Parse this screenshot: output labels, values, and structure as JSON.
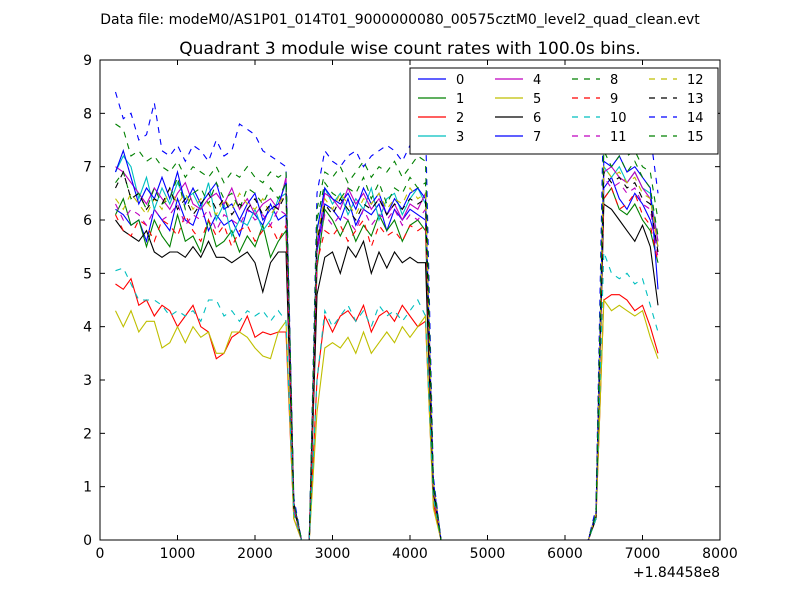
{
  "figure": {
    "suptitle": "Data file: modeM0/AS1P01_014T01_9000000080_00575cztM0_level2_quad_clean.evt"
  },
  "chart_data": {
    "type": "line",
    "title": "Quadrant 3 module wise count rates with 100.0s bins.",
    "xlabel": "",
    "ylabel": "",
    "x_offset_label": "+1.84458e8",
    "xlim": [
      0,
      8000
    ],
    "ylim": [
      0,
      9
    ],
    "xticks": [
      0,
      1000,
      2000,
      3000,
      4000,
      5000,
      6000,
      7000,
      8000
    ],
    "yticks": [
      0,
      1,
      2,
      3,
      4,
      5,
      6,
      7,
      8,
      9
    ],
    "legend_position": "top-right",
    "x": [
      200,
      300,
      400,
      500,
      600,
      700,
      800,
      900,
      1000,
      1100,
      1200,
      1300,
      1400,
      1500,
      1600,
      1700,
      1800,
      1900,
      2000,
      2100,
      2200,
      2300,
      2400,
      2500,
      2600,
      2700,
      2800,
      2900,
      3000,
      3100,
      3200,
      3300,
      3400,
      3500,
      3600,
      3700,
      3800,
      3900,
      4000,
      4100,
      4200,
      4300,
      4400,
      4500,
      6300,
      6400,
      6500,
      6600,
      6700,
      6800,
      6900,
      7000,
      7100,
      7200
    ],
    "series": [
      {
        "name": "0",
        "color": "#0000ff",
        "dash": "solid",
        "values": [
          6.2,
          6.1,
          5.9,
          6.0,
          5.6,
          6.2,
          6.0,
          5.8,
          6.4,
          6.0,
          5.9,
          6.3,
          5.8,
          6.1,
          5.9,
          6.0,
          5.7,
          6.2,
          6.1,
          5.9,
          6.3,
          6.0,
          6.1,
          0.65,
          0.0,
          0.0,
          5.4,
          6.3,
          6.2,
          6.0,
          6.4,
          5.9,
          6.2,
          6.1,
          6.3,
          5.8,
          6.2,
          6.0,
          6.2,
          6.1,
          6.0,
          1.0,
          0.0,
          0.0,
          0.0,
          0.5,
          6.6,
          6.8,
          6.4,
          6.2,
          6.5,
          6.3,
          6.0,
          5.5
        ]
      },
      {
        "name": "1",
        "color": "#008000",
        "dash": "solid",
        "values": [
          6.1,
          6.4,
          5.9,
          6.0,
          5.5,
          6.0,
          5.7,
          5.5,
          6.1,
          5.6,
          5.7,
          5.4,
          6.0,
          5.5,
          5.6,
          5.8,
          5.4,
          5.7,
          5.5,
          5.9,
          5.3,
          5.6,
          5.8,
          0.6,
          0.0,
          0.0,
          5.1,
          6.2,
          6.0,
          5.7,
          6.0,
          5.6,
          5.9,
          5.7,
          6.1,
          5.8,
          6.0,
          5.6,
          5.9,
          6.0,
          5.8,
          1.0,
          0.0,
          0.0,
          0.0,
          0.5,
          6.4,
          6.6,
          6.2,
          6.1,
          6.3,
          6.0,
          5.8,
          5.2
        ]
      },
      {
        "name": "2",
        "color": "#ff0000",
        "dash": "solid",
        "values": [
          4.8,
          4.7,
          4.9,
          4.4,
          4.5,
          4.2,
          4.4,
          4.3,
          4.0,
          4.2,
          4.4,
          4.0,
          3.9,
          3.4,
          3.5,
          3.8,
          3.9,
          4.2,
          3.8,
          3.9,
          3.85,
          3.9,
          3.9,
          0.4,
          0.0,
          0.0,
          3.0,
          4.2,
          3.9,
          4.2,
          4.3,
          4.1,
          4.4,
          3.9,
          4.2,
          4.3,
          4.1,
          4.4,
          4.2,
          4.0,
          4.1,
          0.7,
          0.0,
          0.0,
          0.0,
          0.4,
          4.5,
          4.6,
          4.6,
          4.5,
          4.3,
          4.4,
          4.0,
          3.5
        ]
      },
      {
        "name": "3",
        "color": "#00bfbf",
        "dash": "solid",
        "values": [
          6.9,
          7.2,
          7.0,
          6.4,
          6.8,
          6.2,
          6.6,
          6.3,
          6.7,
          6.4,
          6.5,
          6.2,
          6.7,
          6.0,
          6.3,
          5.7,
          6.0,
          5.9,
          6.2,
          5.8,
          6.0,
          6.4,
          6.5,
          0.7,
          0.0,
          0.0,
          5.8,
          6.6,
          6.3,
          6.5,
          6.1,
          6.4,
          6.2,
          6.6,
          6.0,
          6.4,
          6.5,
          6.1,
          6.4,
          6.6,
          6.3,
          1.1,
          0.0,
          0.0,
          0.0,
          0.5,
          7.0,
          6.8,
          7.0,
          6.7,
          6.9,
          6.6,
          6.5,
          5.6
        ]
      },
      {
        "name": "4",
        "color": "#bf00bf",
        "dash": "solid",
        "values": [
          7.0,
          6.9,
          6.7,
          6.5,
          6.3,
          6.6,
          6.4,
          6.2,
          6.5,
          6.7,
          6.3,
          6.2,
          6.4,
          6.5,
          6.3,
          6.6,
          6.2,
          6.4,
          6.1,
          6.3,
          6.4,
          6.2,
          6.8,
          0.7,
          0.0,
          0.0,
          5.5,
          6.5,
          6.4,
          6.2,
          6.6,
          6.3,
          6.5,
          6.2,
          6.4,
          6.1,
          6.3,
          6.0,
          6.3,
          6.2,
          6.5,
          1.1,
          0.0,
          0.0,
          0.0,
          0.5,
          6.9,
          7.0,
          6.8,
          6.7,
          6.9,
          6.6,
          6.4,
          5.6
        ]
      },
      {
        "name": "5",
        "color": "#bfbf00",
        "dash": "solid",
        "values": [
          4.3,
          4.0,
          4.3,
          3.9,
          4.1,
          4.1,
          3.6,
          3.7,
          4.0,
          3.7,
          4.0,
          3.8,
          3.9,
          3.5,
          3.5,
          3.9,
          3.9,
          3.8,
          3.6,
          3.45,
          3.4,
          3.9,
          4.1,
          0.4,
          0.0,
          0.0,
          2.4,
          3.6,
          3.7,
          3.6,
          3.8,
          3.5,
          3.9,
          3.5,
          3.7,
          3.9,
          3.7,
          4.0,
          3.8,
          4.0,
          4.2,
          0.6,
          0.0,
          0.0,
          0.0,
          0.4,
          4.5,
          4.3,
          4.4,
          4.3,
          4.2,
          4.3,
          3.8,
          3.4
        ]
      },
      {
        "name": "6",
        "color": "#000000",
        "dash": "solid",
        "values": [
          6.0,
          5.8,
          5.7,
          5.6,
          5.8,
          5.4,
          5.3,
          5.4,
          5.4,
          5.3,
          5.5,
          5.3,
          5.6,
          5.3,
          5.3,
          5.2,
          5.3,
          5.4,
          5.2,
          4.65,
          5.2,
          5.4,
          5.4,
          0.6,
          0.0,
          0.0,
          4.6,
          5.3,
          5.4,
          5.0,
          5.5,
          5.3,
          5.6,
          5.0,
          5.4,
          5.1,
          5.4,
          5.2,
          5.3,
          5.2,
          5.2,
          0.9,
          0.0,
          0.0,
          0.0,
          0.4,
          6.3,
          6.2,
          6.0,
          5.8,
          5.6,
          5.9,
          5.5,
          4.4
        ]
      },
      {
        "name": "7",
        "color": "#0000ff",
        "dash": "solid",
        "values": [
          6.9,
          7.3,
          6.8,
          6.3,
          6.6,
          6.4,
          6.8,
          6.4,
          6.9,
          6.3,
          6.6,
          6.3,
          6.5,
          6.7,
          6.2,
          6.3,
          6.0,
          6.3,
          6.5,
          6.0,
          6.2,
          6.3,
          6.7,
          0.7,
          0.0,
          0.0,
          5.8,
          6.6,
          6.4,
          6.3,
          6.5,
          6.2,
          6.6,
          6.3,
          6.5,
          6.1,
          6.4,
          6.2,
          6.5,
          6.6,
          6.4,
          1.1,
          0.0,
          0.0,
          0.0,
          0.5,
          7.1,
          7.0,
          7.2,
          6.9,
          7.0,
          6.8,
          6.6,
          4.7
        ]
      },
      {
        "name": "8",
        "color": "#008000",
        "dash": "dashed",
        "values": [
          6.7,
          6.9,
          6.4,
          6.5,
          6.2,
          6.6,
          6.3,
          6.4,
          6.8,
          6.2,
          6.5,
          6.6,
          6.3,
          6.7,
          6.4,
          6.5,
          6.2,
          6.6,
          6.5,
          6.3,
          6.6,
          6.4,
          6.7,
          0.7,
          0.0,
          0.0,
          6.0,
          6.7,
          6.5,
          6.4,
          6.6,
          6.5,
          6.8,
          6.4,
          6.7,
          6.3,
          6.6,
          6.5,
          6.8,
          6.6,
          6.7,
          1.1,
          0.0,
          0.0,
          0.0,
          0.5,
          7.3,
          7.0,
          7.2,
          6.9,
          7.1,
          6.8,
          6.6,
          5.7
        ]
      },
      {
        "name": "9",
        "color": "#ff0000",
        "dash": "dashed",
        "values": [
          6.1,
          5.8,
          5.7,
          6.0,
          5.9,
          5.6,
          6.0,
          5.9,
          5.7,
          6.1,
          5.8,
          5.6,
          6.0,
          5.7,
          5.9,
          5.5,
          5.8,
          5.9,
          5.6,
          5.8,
          5.9,
          5.6,
          5.9,
          0.6,
          0.0,
          0.0,
          5.2,
          5.8,
          5.7,
          5.9,
          5.6,
          5.8,
          6.0,
          5.5,
          5.9,
          5.7,
          5.8,
          5.6,
          5.9,
          5.8,
          5.9,
          1.0,
          0.0,
          0.0,
          0.0,
          0.5,
          6.4,
          6.6,
          6.2,
          6.3,
          6.5,
          6.1,
          5.9,
          5.2
        ]
      },
      {
        "name": "10",
        "color": "#00bfbf",
        "dash": "dashed",
        "values": [
          5.05,
          5.1,
          4.8,
          4.5,
          4.5,
          4.5,
          4.4,
          4.2,
          4.3,
          4.2,
          4.3,
          4.1,
          4.5,
          4.5,
          4.2,
          4.3,
          4.1,
          4.3,
          4.2,
          4.3,
          4.1,
          4.3,
          4.1,
          0.5,
          0.0,
          0.0,
          3.0,
          4.3,
          4.0,
          4.2,
          4.4,
          4.1,
          4.3,
          4.0,
          4.4,
          4.2,
          4.3,
          4.1,
          4.3,
          4.5,
          4.2,
          0.8,
          0.0,
          0.0,
          0.0,
          0.4,
          5.4,
          5.0,
          4.9,
          5.0,
          4.8,
          4.9,
          4.4,
          3.9
        ]
      },
      {
        "name": "11",
        "color": "#bf00bf",
        "dash": "dashed",
        "values": [
          6.3,
          6.0,
          6.2,
          6.1,
          5.9,
          6.2,
          6.0,
          6.1,
          6.3,
          5.9,
          6.1,
          6.0,
          6.2,
          5.8,
          6.1,
          6.0,
          5.9,
          6.2,
          6.0,
          6.1,
          5.9,
          6.2,
          6.1,
          0.6,
          0.0,
          0.0,
          5.4,
          6.1,
          5.9,
          6.1,
          6.0,
          5.8,
          6.2,
          5.9,
          6.1,
          6.0,
          6.2,
          5.9,
          6.1,
          6.0,
          6.2,
          1.0,
          0.0,
          0.0,
          0.0,
          0.5,
          6.8,
          6.6,
          6.7,
          6.5,
          6.6,
          6.3,
          6.2,
          5.3
        ]
      },
      {
        "name": "12",
        "color": "#bfbf00",
        "dash": "dashed",
        "values": [
          6.4,
          6.2,
          6.5,
          6.3,
          6.1,
          6.4,
          6.2,
          6.6,
          6.3,
          6.5,
          6.2,
          6.4,
          6.3,
          6.1,
          6.4,
          6.2,
          6.5,
          6.3,
          6.2,
          6.4,
          6.1,
          6.3,
          6.5,
          0.7,
          0.0,
          0.0,
          5.7,
          6.4,
          6.2,
          6.5,
          6.3,
          6.1,
          6.4,
          6.3,
          6.5,
          6.2,
          6.4,
          6.3,
          6.6,
          6.4,
          6.5,
          1.1,
          0.0,
          0.0,
          0.0,
          0.5,
          7.0,
          6.8,
          6.9,
          6.7,
          6.8,
          6.5,
          6.4,
          5.5
        ]
      },
      {
        "name": "13",
        "color": "#000000",
        "dash": "dashed",
        "values": [
          6.6,
          6.9,
          6.4,
          6.5,
          6.2,
          6.4,
          6.3,
          6.6,
          6.2,
          6.4,
          6.1,
          6.3,
          6.5,
          6.2,
          6.4,
          6.1,
          6.3,
          6.2,
          6.4,
          6.1,
          6.3,
          6.2,
          6.5,
          0.7,
          0.0,
          0.0,
          5.6,
          6.3,
          6.1,
          6.4,
          6.2,
          6.0,
          6.3,
          6.2,
          6.4,
          6.1,
          6.3,
          6.2,
          6.4,
          6.3,
          6.4,
          1.0,
          0.0,
          0.0,
          0.0,
          0.5,
          6.9,
          6.7,
          6.8,
          6.6,
          6.7,
          6.4,
          6.3,
          5.4
        ]
      },
      {
        "name": "14",
        "color": "#0000ff",
        "dash": "dashed",
        "values": [
          8.4,
          7.9,
          8.0,
          7.5,
          7.6,
          8.2,
          7.3,
          7.2,
          7.4,
          7.1,
          7.4,
          7.3,
          7.1,
          7.5,
          7.2,
          7.3,
          7.8,
          7.7,
          7.6,
          7.3,
          7.2,
          7.1,
          7.0,
          0.8,
          0.0,
          0.0,
          6.5,
          7.3,
          7.1,
          7.0,
          7.2,
          7.3,
          7.0,
          7.2,
          7.3,
          7.4,
          7.3,
          7.1,
          7.4,
          7.6,
          7.8,
          1.2,
          0.0,
          0.0,
          0.0,
          0.6,
          8.4,
          7.9,
          8.1,
          8.0,
          8.1,
          7.8,
          7.6,
          6.5
        ]
      },
      {
        "name": "15",
        "color": "#008000",
        "dash": "dashed",
        "values": [
          7.8,
          7.7,
          7.2,
          7.3,
          7.1,
          7.2,
          7.0,
          6.9,
          7.1,
          6.8,
          7.0,
          6.9,
          6.8,
          7.0,
          6.7,
          6.9,
          6.8,
          7.0,
          6.8,
          6.7,
          6.9,
          6.8,
          6.9,
          0.7,
          0.0,
          0.0,
          6.2,
          6.9,
          6.8,
          7.0,
          6.7,
          6.9,
          7.1,
          6.8,
          7.0,
          6.9,
          7.1,
          6.8,
          7.0,
          7.2,
          7.1,
          1.1,
          0.0,
          0.0,
          0.0,
          0.5,
          7.5,
          7.3,
          7.4,
          7.2,
          7.3,
          7.0,
          6.9,
          6.0
        ]
      }
    ]
  }
}
